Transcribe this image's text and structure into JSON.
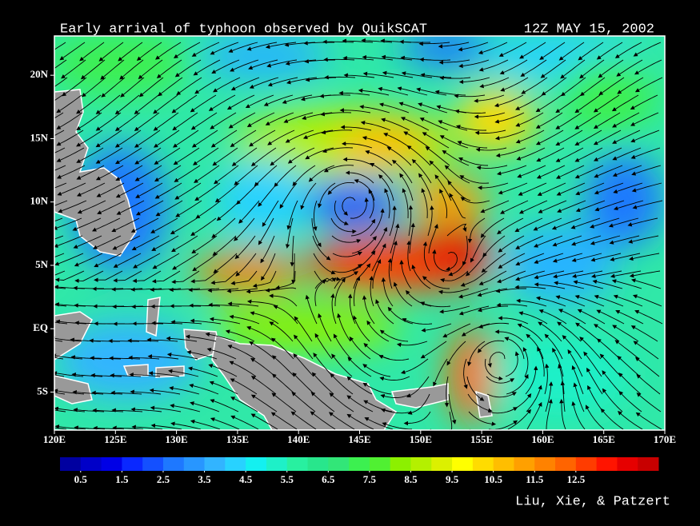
{
  "chart_data": {
    "type": "map",
    "title": "Early arrival of typhoon observed by QuikSCAT",
    "date": "12Z MAY 15, 2002",
    "credit": "Liu, Xie, & Patzert",
    "xlim": [
      120,
      170
    ],
    "ylim": [
      -8,
      23.1
    ],
    "xticks": [
      {
        "value": 120,
        "label": "120E"
      },
      {
        "value": 125,
        "label": "125E"
      },
      {
        "value": 130,
        "label": "130E"
      },
      {
        "value": 135,
        "label": "135E"
      },
      {
        "value": 140,
        "label": "140E"
      },
      {
        "value": 145,
        "label": "145E"
      },
      {
        "value": 150,
        "label": "150E"
      },
      {
        "value": 155,
        "label": "155E"
      },
      {
        "value": 160,
        "label": "160E"
      },
      {
        "value": 165,
        "label": "165E"
      },
      {
        "value": 170,
        "label": "170E"
      }
    ],
    "yticks": [
      {
        "value": -5,
        "label": "5S"
      },
      {
        "value": 0,
        "label": "EQ"
      },
      {
        "value": 5,
        "label": "5N"
      },
      {
        "value": 10,
        "label": "10N"
      },
      {
        "value": 15,
        "label": "15N"
      },
      {
        "value": 20,
        "label": "20N"
      }
    ],
    "colorbar": {
      "range": [
        0,
        14.5
      ],
      "ticks": [
        0.5,
        1.5,
        2.5,
        3.5,
        4.5,
        5.5,
        6.5,
        7.5,
        8.5,
        9.5,
        10.5,
        11.5,
        12.5
      ],
      "colors": [
        "#0000a0",
        "#0000c8",
        "#0000e6",
        "#0a28ff",
        "#1450ff",
        "#1e78ff",
        "#2896ff",
        "#32b4ff",
        "#28d2ff",
        "#14f0f0",
        "#1ef0c8",
        "#28f0a0",
        "#28e68c",
        "#32e678",
        "#3cf050",
        "#50f032",
        "#8cf000",
        "#b4f000",
        "#dcf000",
        "#ffff00",
        "#ffdc00",
        "#ffbe00",
        "#ffa000",
        "#ff8200",
        "#ff6400",
        "#ff3c00",
        "#ff1400",
        "#e60000",
        "#c80000"
      ]
    }
  }
}
